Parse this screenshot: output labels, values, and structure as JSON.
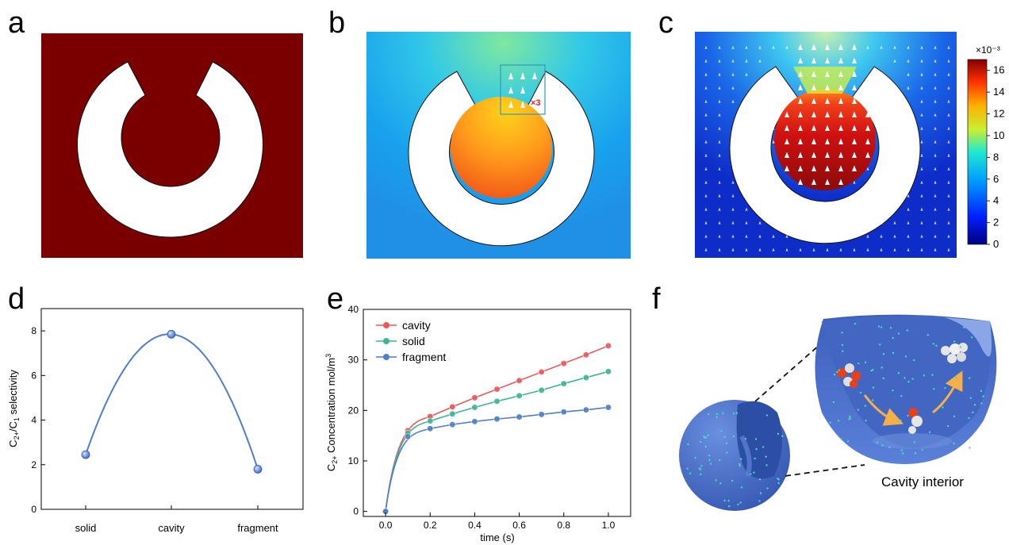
{
  "panel_labels": {
    "a": "a",
    "b": "b",
    "c": "c",
    "d": "d",
    "e": "e",
    "f": "f"
  },
  "colors": {
    "field_dark_red": "#7a0000",
    "line_cavity": "#e8595a",
    "line_solid": "#3fb593",
    "line_fragment": "#4f7fc4",
    "sphere_blue": "#4a6fc8",
    "arrow_orange": "#f5b04a"
  },
  "panel_b": {
    "zoom_label": "×3"
  },
  "colorbar": {
    "exponent_label": "×10⁻³",
    "ticks": [
      "0",
      "2",
      "4",
      "6",
      "8",
      "10",
      "12",
      "14",
      "16"
    ],
    "range": [
      0,
      17
    ]
  },
  "panel_f": {
    "caption": "Cavity interior"
  },
  "chart_data": [
    {
      "panel": "d",
      "type": "scatter",
      "categories": [
        "solid",
        "cavity",
        "fragment"
      ],
      "values": [
        2.45,
        7.85,
        1.8
      ],
      "ylabel": "C2+/C1 selectivity",
      "ylabel_parts": {
        "a": "C",
        "sub1": "2+",
        "b": "/C",
        "sub2": "1",
        "c": " selectivity"
      },
      "ylim": [
        0,
        9
      ],
      "yticks": [
        "0",
        "2",
        "4",
        "6",
        "8"
      ],
      "grid": false,
      "fit_curve": "smooth"
    },
    {
      "panel": "e",
      "type": "line",
      "x": [
        0,
        0.1,
        0.2,
        0.3,
        0.4,
        0.5,
        0.6,
        0.7,
        0.8,
        0.9,
        1.0
      ],
      "series": [
        {
          "name": "cavity",
          "values": [
            0,
            16.0,
            18.8,
            20.7,
            22.5,
            24.2,
            25.9,
            27.6,
            29.3,
            31.0,
            32.8
          ]
        },
        {
          "name": "solid",
          "values": [
            0,
            15.5,
            17.9,
            19.3,
            20.6,
            21.8,
            22.9,
            24.0,
            25.3,
            26.5,
            27.7
          ]
        },
        {
          "name": "fragment",
          "values": [
            0,
            14.8,
            16.4,
            17.2,
            17.8,
            18.3,
            18.7,
            19.2,
            19.7,
            20.1,
            20.6
          ]
        }
      ],
      "xlabel": "time (s)",
      "ylabel": "C2+ Concentration mol/m3",
      "ylabel_parts": {
        "a": "C",
        "sub": "2+",
        "b": " Concentration mol/m",
        "sup": "3"
      },
      "xlim": [
        -0.1,
        1.1
      ],
      "ylim": [
        -1,
        40
      ],
      "xticks": [
        "0.0",
        "0.2",
        "0.4",
        "0.6",
        "0.8",
        "1.0"
      ],
      "yticks": [
        "0",
        "10",
        "20",
        "30",
        "40"
      ],
      "legend": "top-left",
      "grid": false
    }
  ]
}
